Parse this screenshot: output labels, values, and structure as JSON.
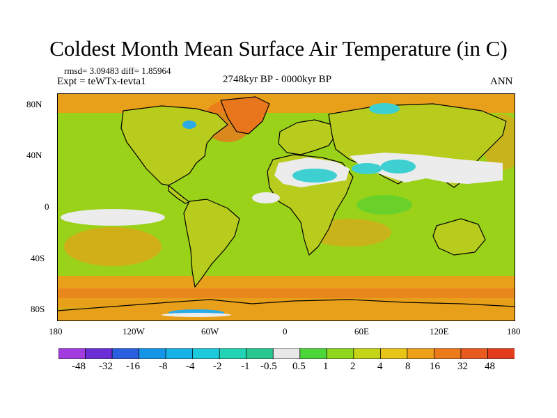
{
  "title": "Coldest Month Mean Surface Air Temperature (in C)",
  "stats": "rmsd= 3.09483 diff= 1.85964",
  "experiment": "Expt = teWTx-tevta1",
  "period": "2748kyr BP - 0000kyr BP",
  "season": "ANN",
  "lat_labels": [
    "80N",
    "40N",
    "0",
    "40S",
    "80S"
  ],
  "lon_labels": [
    "180",
    "120W",
    "60W",
    "0",
    "60E",
    "120E",
    "180"
  ],
  "colorbar": {
    "labels": [
      "-48",
      "-32",
      "-16",
      "-8",
      "-4",
      "-2",
      "-1",
      "-0.5",
      "0.5",
      "1",
      "2",
      "4",
      "8",
      "16",
      "32",
      "48"
    ],
    "colors": [
      "#a23be0",
      "#6b2dd6",
      "#2a5fe0",
      "#1595e8",
      "#17b3e8",
      "#1dcadb",
      "#22d4b5",
      "#28c890",
      "#e8e8e8",
      "#4cd63a",
      "#8fd61c",
      "#c6d418",
      "#e8c418",
      "#eea01a",
      "#ec7a1a",
      "#e85a1e",
      "#e23c1a"
    ]
  },
  "colors": {
    "ocean_base": "#9ad21a",
    "land_base": "#b8cc1e",
    "warm": "#e8a01a",
    "hot": "#e8761c",
    "white": "#ececec",
    "cool": "#3ecfd0",
    "blue": "#2baae8",
    "green": "#55d032",
    "coast": "#000000"
  }
}
